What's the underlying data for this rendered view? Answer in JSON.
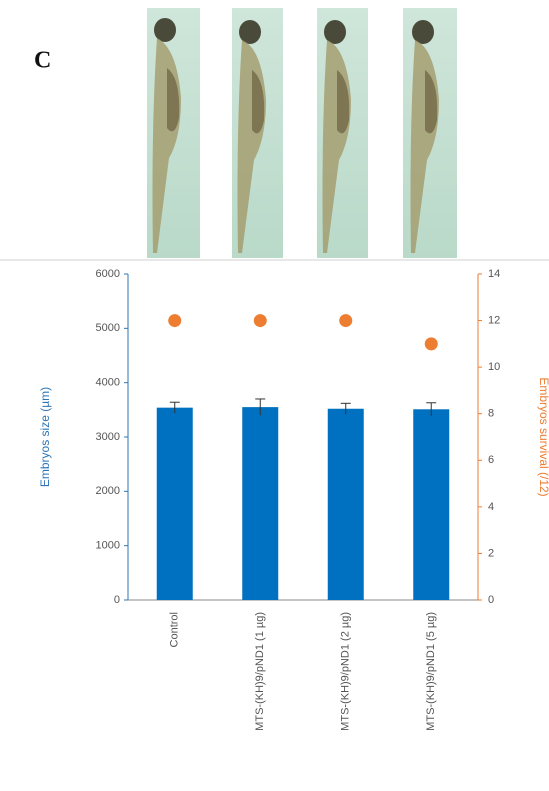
{
  "chart_data": {
    "type": "bar",
    "panel_label": "C",
    "categories": [
      "Control",
      "MTS-(KH)9/pND1 (1 µg)",
      "MTS-(KH)9/pND1 (2 µg)",
      "MTS-(KH)9/pND1 (5 µg)"
    ],
    "series": [
      {
        "type": "bar",
        "color": "#0070c0",
        "values": [
          3540,
          3550,
          3520,
          3510
        ],
        "errors": [
          100,
          150,
          100,
          120
        ]
      },
      {
        "type": "scatter",
        "color": "#ed7d31",
        "axis": "y2",
        "values": [
          12,
          12,
          12,
          11
        ]
      }
    ],
    "y_label": "Embryos size (µm)",
    "y2_label": "Embryos survival (/12)",
    "ylim": [
      0,
      6000
    ],
    "yticks": [
      0,
      1000,
      2000,
      3000,
      4000,
      5000,
      6000
    ],
    "y2lim": [
      0,
      14
    ],
    "y2ticks": [
      0,
      2,
      4,
      6,
      8,
      10,
      12,
      14
    ]
  }
}
